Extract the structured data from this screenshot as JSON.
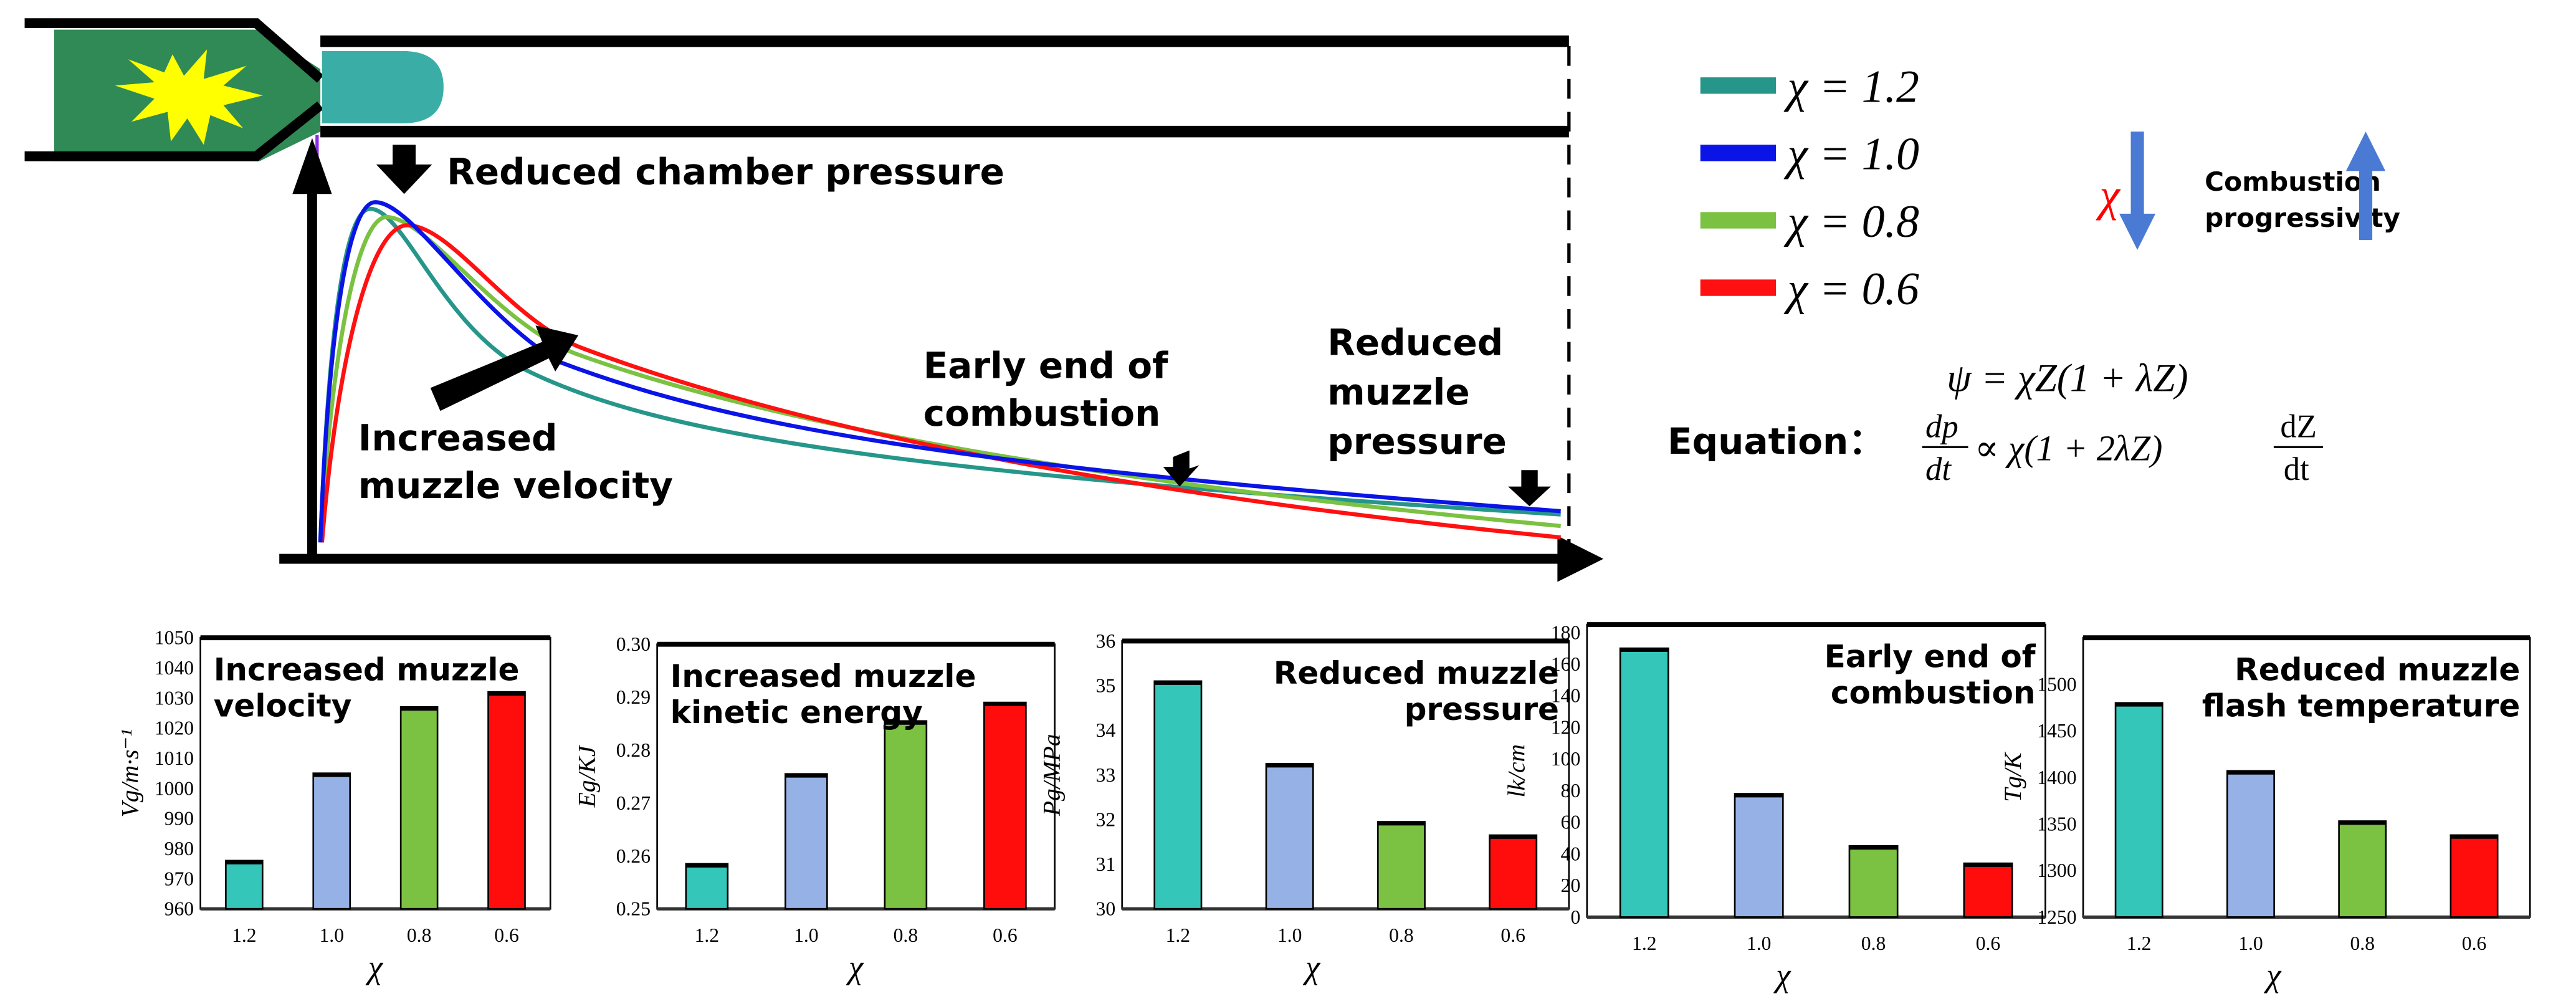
{
  "diagram": {
    "annotations": {
      "chamber": "Reduced chamber pressure",
      "velocity": [
        "Increased",
        "muzzle velocity"
      ],
      "combustion": [
        "Early end of",
        "combustion"
      ],
      "muzzle_pressure": [
        "Reduced",
        "muzzle",
        "pressure"
      ]
    },
    "legend": [
      {
        "label": "χ = 1.2",
        "color": "#26968a"
      },
      {
        "label": "χ = 1.0",
        "color": "#0a14e6"
      },
      {
        "label": "χ = 0.8",
        "color": "#7bc142"
      },
      {
        "label": "χ = 0.6",
        "color": "#ff1111"
      }
    ],
    "trend": {
      "chi": "χ",
      "text": [
        "Combustion",
        "progressivity"
      ],
      "arrow_color": "#4a7ad4",
      "text_color": "#ff0000"
    },
    "equation": {
      "label": "Equation：",
      "eq1": "ψ = χZ(1 + λZ)",
      "eq2_lhs_num": "dp",
      "eq2_lhs_den": "dt",
      "eq2_mid": "∝ χ(1 + 2λZ)",
      "eq2_rhs_num": "dZ",
      "eq2_rhs_den": "dt",
      "color": "#4a72c8"
    }
  },
  "chart_data": [
    {
      "type": "bar",
      "title": "Increased muzzle velocity",
      "title_lines": [
        "Increased muzzle",
        "velocity"
      ],
      "xlabel": "χ",
      "ylabel": "Vg/m·s⁻¹",
      "categories": [
        "1.2",
        "1.0",
        "0.8",
        "0.6"
      ],
      "values": [
        976,
        1005,
        1027,
        1032
      ],
      "ylim": [
        960,
        1050
      ],
      "yticks": [
        960,
        970,
        980,
        990,
        1000,
        1010,
        1020,
        1030,
        1040,
        1050
      ],
      "colors": [
        "#33c6b9",
        "#96b1e6",
        "#7bc142",
        "#ff0d0d"
      ]
    },
    {
      "type": "bar",
      "title": "Increased muzzle kinetic energy",
      "title_lines": [
        "Increased muzzle",
        "kinetic energy"
      ],
      "xlabel": "χ",
      "ylabel": "Eg/KJ",
      "categories": [
        "1.2",
        "1.0",
        "0.8",
        "0.6"
      ],
      "values": [
        0.2585,
        0.2755,
        0.2855,
        0.289
      ],
      "ylim": [
        0.25,
        0.3
      ],
      "yticks": [
        "0.25",
        "0.26",
        "0.27",
        "0.28",
        "0.29",
        "0.30"
      ],
      "colors": [
        "#33c6b9",
        "#96b1e6",
        "#7bc142",
        "#ff0d0d"
      ]
    },
    {
      "type": "bar",
      "title": "Reduced muzzle pressure",
      "title_lines": [
        "Reduced muzzle",
        "pressure"
      ],
      "xlabel": "χ",
      "ylabel": "Pg/MPa",
      "categories": [
        "1.2",
        "1.0",
        "0.8",
        "0.6"
      ],
      "values": [
        35.1,
        33.25,
        31.95,
        31.65
      ],
      "ylim": [
        30,
        36
      ],
      "yticks": [
        30,
        31,
        32,
        33,
        34,
        35,
        36
      ],
      "colors": [
        "#33c6b9",
        "#96b1e6",
        "#7bc142",
        "#ff0d0d"
      ]
    },
    {
      "type": "bar",
      "title": "Early end of combustion",
      "title_lines": [
        "Early end of",
        "combustion"
      ],
      "xlabel": "χ",
      "ylabel": "lk/cm",
      "categories": [
        "1.2",
        "1.0",
        "0.8",
        "0.6"
      ],
      "values": [
        170,
        78,
        45,
        34
      ],
      "ylim": [
        0,
        185
      ],
      "yticks": [
        0,
        20,
        40,
        60,
        80,
        100,
        120,
        140,
        160,
        180
      ],
      "colors": [
        "#33c6b9",
        "#96b1e6",
        "#7bc142",
        "#ff0d0d"
      ]
    },
    {
      "type": "bar",
      "title": "Reduced muzzle flash temperature",
      "title_lines": [
        "Reduced muzzle",
        "flash temperature"
      ],
      "xlabel": "χ",
      "ylabel": "Tg/K",
      "categories": [
        "1.2",
        "1.0",
        "0.8",
        "0.6"
      ],
      "values": [
        1480,
        1407,
        1353,
        1338
      ],
      "ylim": [
        1250,
        1550
      ],
      "yticks": [
        1250,
        1300,
        1350,
        1400,
        1450,
        1500
      ],
      "colors": [
        "#33c6b9",
        "#96b1e6",
        "#7bc142",
        "#ff0d0d"
      ]
    }
  ]
}
